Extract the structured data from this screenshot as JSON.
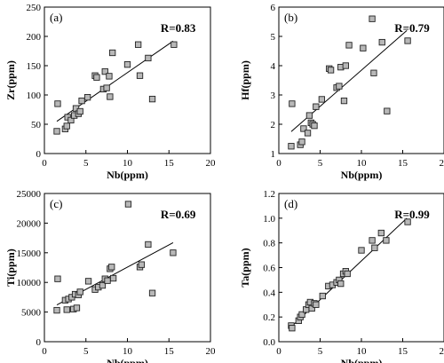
{
  "chart_data": [
    {
      "type": "scatter",
      "panel_label": "(a)",
      "xlabel": "Nb(ppm)",
      "ylabel": "Zr(ppm)",
      "xlim": [
        0,
        20
      ],
      "ylim": [
        0,
        250
      ],
      "xticks": [
        0,
        5,
        10,
        15,
        20
      ],
      "yticks": [
        0,
        50,
        100,
        150,
        200,
        250
      ],
      "annotation": "R=0.83",
      "fit_line": {
        "x": [
          1.5,
          15.5
        ],
        "y": [
          55,
          192
        ]
      },
      "points": [
        [
          1.5,
          38
        ],
        [
          1.6,
          85
        ],
        [
          2.5,
          42
        ],
        [
          2.7,
          47
        ],
        [
          2.8,
          62
        ],
        [
          3.2,
          57
        ],
        [
          3.6,
          65
        ],
        [
          3.8,
          77
        ],
        [
          4.1,
          68
        ],
        [
          4.3,
          72
        ],
        [
          4.5,
          90
        ],
        [
          5.2,
          96
        ],
        [
          6.1,
          133
        ],
        [
          6.3,
          130
        ],
        [
          7.1,
          110
        ],
        [
          7.3,
          140
        ],
        [
          7.5,
          112
        ],
        [
          7.8,
          132
        ],
        [
          7.9,
          97
        ],
        [
          8.2,
          172
        ],
        [
          10.0,
          152
        ],
        [
          11.3,
          186
        ],
        [
          11.5,
          133
        ],
        [
          12.5,
          163
        ],
        [
          13.0,
          93
        ],
        [
          15.6,
          186
        ]
      ]
    },
    {
      "type": "scatter",
      "panel_label": "(b)",
      "xlabel": "Nb(ppm)",
      "ylabel": "Hf(ppm)",
      "xlim": [
        0,
        20
      ],
      "ylim": [
        1,
        6
      ],
      "xticks": [
        0,
        5,
        10,
        15,
        20
      ],
      "yticks": [
        1,
        2,
        3,
        4,
        5,
        6
      ],
      "annotation": "R=0.79",
      "fit_line": {
        "x": [
          1.5,
          15.5
        ],
        "y": [
          1.75,
          5.2
        ]
      },
      "points": [
        [
          1.5,
          1.25
        ],
        [
          1.6,
          2.7
        ],
        [
          2.6,
          1.3
        ],
        [
          2.8,
          1.4
        ],
        [
          3.0,
          1.85
        ],
        [
          3.5,
          1.7
        ],
        [
          3.7,
          2.3
        ],
        [
          3.9,
          2.05
        ],
        [
          4.1,
          2.0
        ],
        [
          4.3,
          1.95
        ],
        [
          4.5,
          2.6
        ],
        [
          5.2,
          2.85
        ],
        [
          6.1,
          3.9
        ],
        [
          6.3,
          3.85
        ],
        [
          7.0,
          3.25
        ],
        [
          7.3,
          3.3
        ],
        [
          7.5,
          3.95
        ],
        [
          7.9,
          2.8
        ],
        [
          8.1,
          4.0
        ],
        [
          8.5,
          4.7
        ],
        [
          10.2,
          4.6
        ],
        [
          11.3,
          5.6
        ],
        [
          11.5,
          3.75
        ],
        [
          12.5,
          4.8
        ],
        [
          13.1,
          2.45
        ],
        [
          15.6,
          4.85
        ]
      ]
    },
    {
      "type": "scatter",
      "panel_label": "(c)",
      "xlabel": "Nb(ppm)",
      "ylabel": "Ti(ppm)",
      "xlim": [
        0,
        20
      ],
      "ylim": [
        0,
        25000
      ],
      "xticks": [
        0,
        5,
        10,
        15,
        20
      ],
      "yticks": [
        0,
        5000,
        10000,
        15000,
        20000,
        25000
      ],
      "annotation": "R=0.69",
      "fit_line": {
        "x": [
          1.5,
          15.5
        ],
        "y": [
          6200,
          16700
        ]
      },
      "points": [
        [
          1.5,
          5300
        ],
        [
          1.6,
          10600
        ],
        [
          2.5,
          7000
        ],
        [
          2.7,
          5400
        ],
        [
          2.9,
          7200
        ],
        [
          3.3,
          7500
        ],
        [
          3.5,
          5500
        ],
        [
          3.7,
          8000
        ],
        [
          3.9,
          5700
        ],
        [
          4.1,
          7900
        ],
        [
          4.3,
          8400
        ],
        [
          5.3,
          10200
        ],
        [
          6.1,
          8800
        ],
        [
          6.5,
          9200
        ],
        [
          7.0,
          9500
        ],
        [
          7.3,
          10600
        ],
        [
          7.6,
          10300
        ],
        [
          7.9,
          12300
        ],
        [
          8.1,
          12600
        ],
        [
          8.3,
          10700
        ],
        [
          10.1,
          23200
        ],
        [
          11.5,
          12600
        ],
        [
          11.7,
          13000
        ],
        [
          12.5,
          16400
        ],
        [
          13.0,
          8200
        ],
        [
          15.5,
          15000
        ]
      ]
    },
    {
      "type": "scatter",
      "panel_label": "(d)",
      "xlabel": "Nb(ppm)",
      "ylabel": "Ta(ppm)",
      "xlim": [
        0,
        20
      ],
      "ylim": [
        0.0,
        1.2
      ],
      "xticks": [
        0,
        5,
        10,
        15,
        20
      ],
      "yticks": [
        0.0,
        0.2,
        0.4,
        0.6,
        0.8,
        1.0,
        1.2
      ],
      "annotation": "R=0.99",
      "fit_line": {
        "x": [
          1.5,
          15.5
        ],
        "y": [
          0.12,
          1.0
        ]
      },
      "points": [
        [
          1.5,
          0.13
        ],
        [
          1.6,
          0.11
        ],
        [
          2.4,
          0.17
        ],
        [
          2.6,
          0.2
        ],
        [
          2.8,
          0.22
        ],
        [
          3.3,
          0.26
        ],
        [
          3.6,
          0.3
        ],
        [
          3.8,
          0.32
        ],
        [
          4.0,
          0.27
        ],
        [
          4.3,
          0.31
        ],
        [
          4.5,
          0.3
        ],
        [
          5.3,
          0.37
        ],
        [
          6.0,
          0.45
        ],
        [
          6.5,
          0.46
        ],
        [
          7.0,
          0.48
        ],
        [
          7.3,
          0.5
        ],
        [
          7.5,
          0.47
        ],
        [
          7.8,
          0.55
        ],
        [
          8.1,
          0.57
        ],
        [
          8.3,
          0.55
        ],
        [
          10.0,
          0.74
        ],
        [
          11.3,
          0.82
        ],
        [
          11.6,
          0.76
        ],
        [
          12.4,
          0.88
        ],
        [
          13.0,
          0.82
        ],
        [
          15.6,
          0.97
        ]
      ]
    }
  ]
}
